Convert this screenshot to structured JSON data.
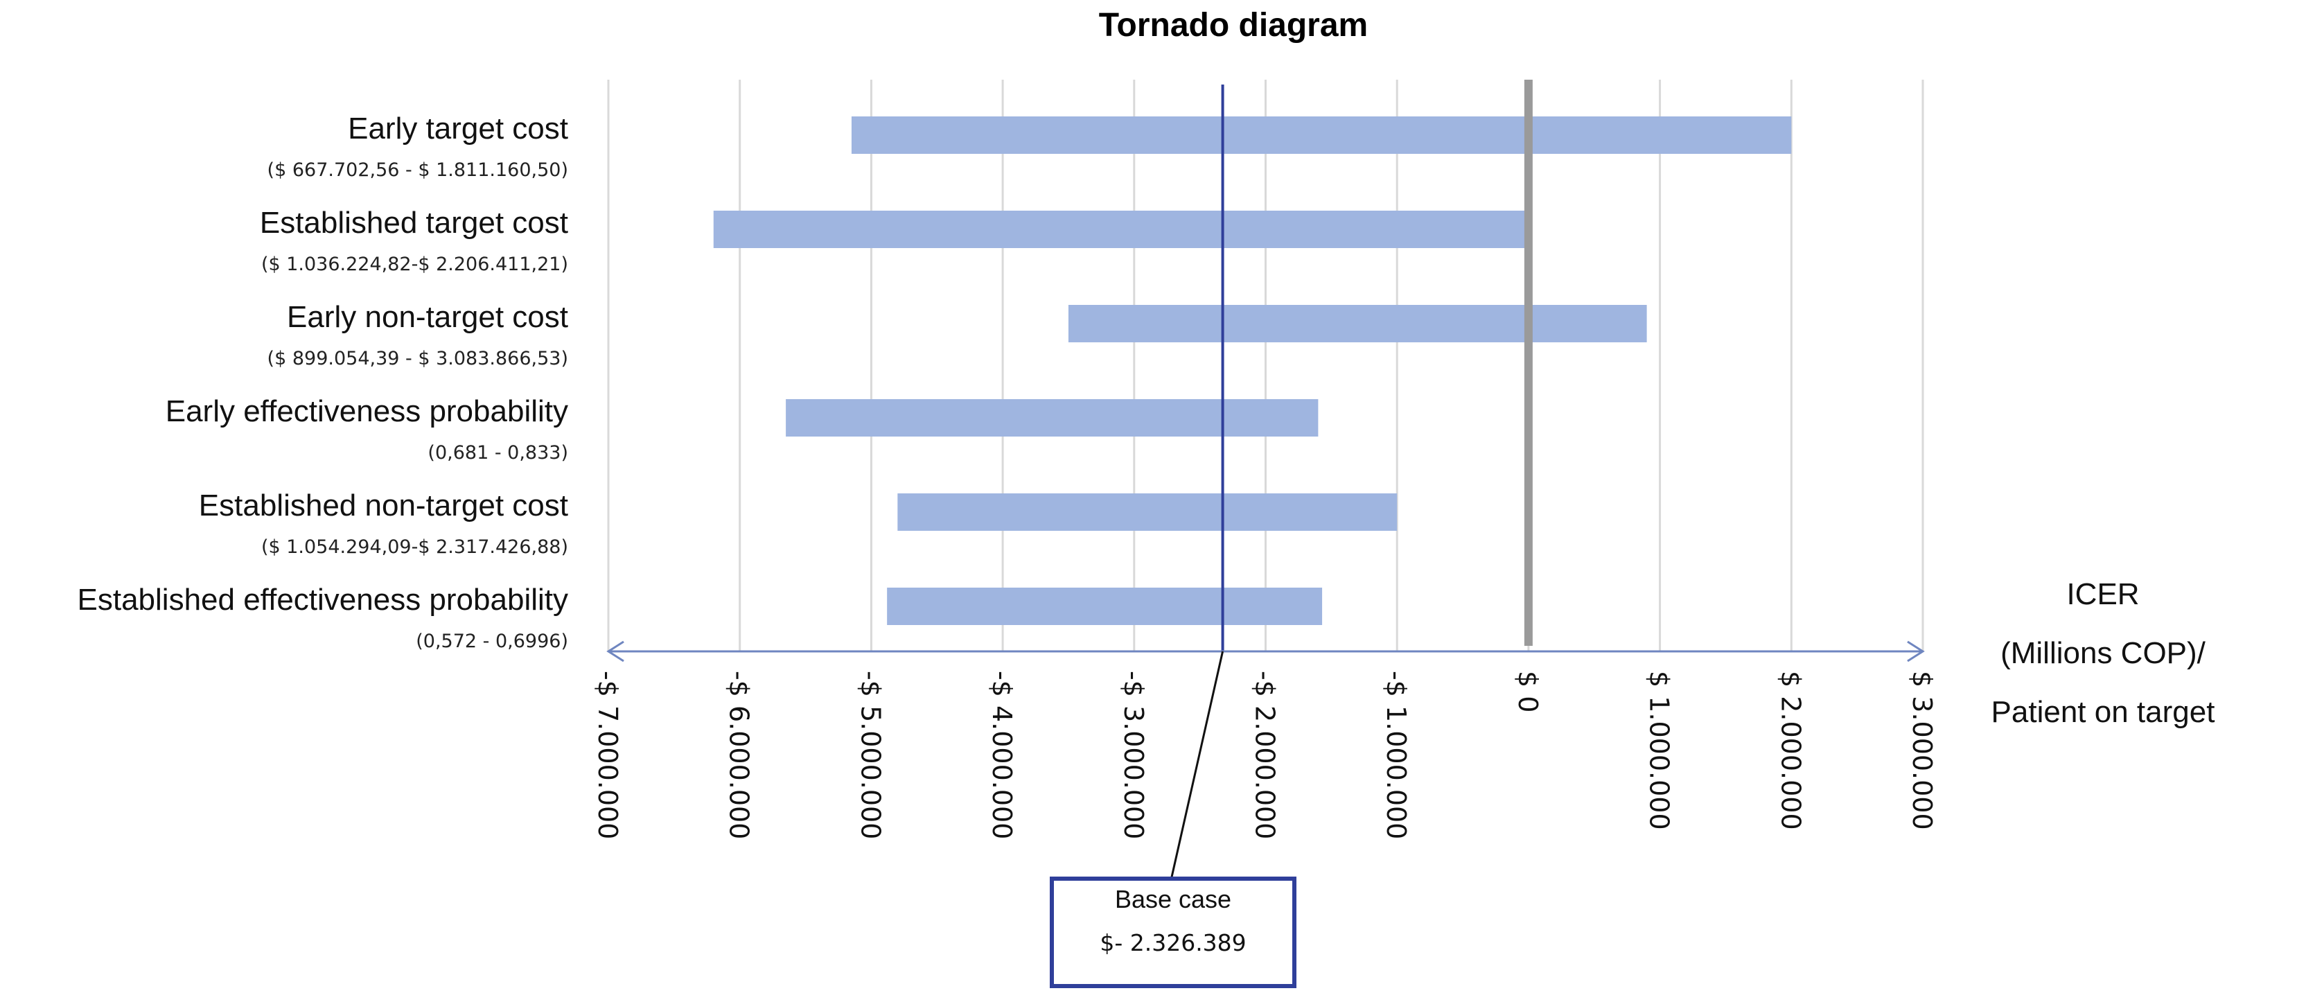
{
  "chart_data": {
    "type": "bar",
    "subtype": "tornado",
    "title": "Tornado diagram",
    "xlabel_lines": [
      "ICER",
      "(Millions COP)/",
      "Patient on target"
    ],
    "xlim": [
      -7000000,
      3000000
    ],
    "x_ticks": [
      -7000000,
      -6000000,
      -5000000,
      -4000000,
      -3000000,
      -2000000,
      -1000000,
      0,
      1000000,
      2000000,
      3000000
    ],
    "x_tick_labels": [
      "-$ 7.000.000",
      "-$ 6.000.000",
      "-$ 5.000.000",
      "-$ 4.000.000",
      "-$ 3.000.000",
      "-$ 2.000.000",
      "-$ 1.000.000",
      "$ 0",
      "$ 1.000.000",
      "$ 2.000.000",
      "$ 3.000.000"
    ],
    "grid": true,
    "bar_color": "#9fb5e0",
    "base_line_color": "#2f3f9a",
    "zero_line_color": "#9a9a9a",
    "categories": [
      "Early target cost",
      "Established target cost",
      "Early non-target cost",
      "Early effectiveness probability",
      "Established non-target cost",
      "Established effectiveness probability"
    ],
    "ranges": [
      "($ 667.702,56 - $ 1.811.160,50)",
      "($ 1.036.224,82-$ 2.206.411,21)",
      "($ 899.054,39 - $ 3.083.866,53)",
      "(0,681 - 0,833)",
      "($ 1.054.294,09-$ 2.317.426,88)",
      "(0,572 - 0,6996)"
    ],
    "low": [
      -5150000,
      -6200000,
      -3500000,
      -5650000,
      -4800000,
      -4880000
    ],
    "high": [
      2000000,
      -20000,
      900000,
      -1600000,
      -1000000,
      -1570000
    ],
    "base_case": {
      "label": "Base case",
      "value_text": "$- 2.326.389",
      "value": -2326389
    }
  }
}
